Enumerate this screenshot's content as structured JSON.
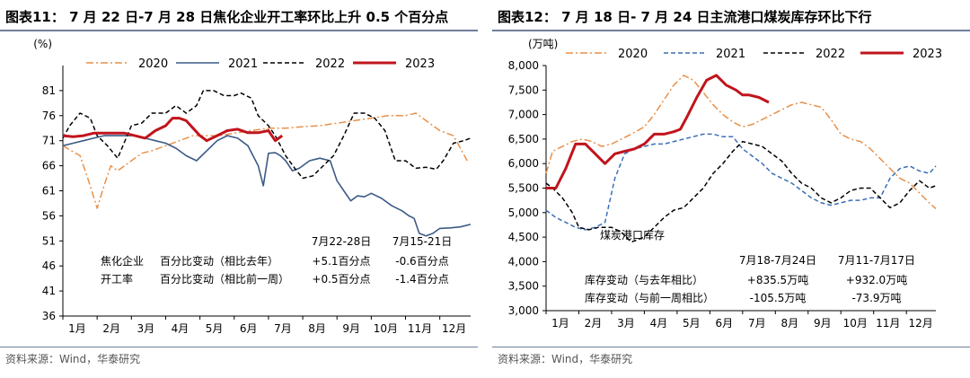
{
  "charts": [
    {
      "title": "图表11：  7 月 22 日-7 月 28 日焦化企业开工率环比上升 0.5 个百分点",
      "source": "资料来源：Wind，华泰研究",
      "colors": {
        "rule": "#6f7f9a"
      },
      "chart_data": {
        "type": "line",
        "yunit": "(%)",
        "ylim": [
          36,
          86
        ],
        "yticks": [
          36,
          41,
          46,
          51,
          56,
          61,
          66,
          71,
          76,
          81
        ],
        "months": [
          "1月",
          "2月",
          "3月",
          "4月",
          "5月",
          "6月",
          "7月",
          "8月",
          "9月",
          "10月",
          "11月",
          "12月"
        ],
        "xlim": [
          1,
          12.9
        ],
        "series": [
          {
            "name": "2020",
            "color": "#e8914a",
            "dash": "8,3,2,3",
            "width": 1.5,
            "x": [
              1,
              1.25,
              1.5,
              1.75,
              2,
              2.2,
              2.4,
              2.6,
              2.8,
              3,
              3.3,
              3.6,
              4,
              4.4,
              4.8,
              5.2,
              5.6,
              6,
              6.5,
              7,
              7.5,
              8,
              8.5,
              9,
              9.5,
              10,
              10.5,
              11,
              11.3,
              11.6,
              12,
              12.4,
              12.8
            ],
            "y": [
              70,
              69,
              68,
              63,
              57.5,
              62,
              66,
              65,
              66,
              67,
              68.5,
              69,
              70,
              71,
              72,
              72,
              72,
              72.5,
              73,
              73.5,
              73.5,
              73.8,
              74,
              74.5,
              75,
              75.5,
              76,
              76,
              76.5,
              75,
              73,
              72,
              67
            ]
          },
          {
            "name": "2021",
            "color": "#3b5a86",
            "dash": "",
            "width": 1.6,
            "x": [
              1,
              1.3,
              1.6,
              1.9,
              2.2,
              2.5,
              2.8,
              3.1,
              3.4,
              3.7,
              4,
              4.3,
              4.6,
              4.9,
              5.2,
              5.5,
              5.8,
              6.1,
              6.4,
              6.7,
              6.85,
              7,
              7.2,
              7.35,
              7.5,
              7.7,
              7.9,
              8.2,
              8.5,
              8.8,
              9,
              9.2,
              9.4,
              9.6,
              9.8,
              10,
              10.3,
              10.6,
              10.9,
              11.1,
              11.25,
              11.4,
              11.6,
              11.8,
              12,
              12.3,
              12.6,
              12.9
            ],
            "y": [
              70,
              70.5,
              71,
              71.5,
              72,
              72,
              72,
              72,
              71.5,
              71,
              70.5,
              69.5,
              68,
              67,
              69,
              71,
              72,
              71.5,
              70,
              66,
              62,
              68.5,
              68.6,
              68,
              67,
              65,
              65.5,
              67,
              67.5,
              67,
              63,
              61,
              59,
              60,
              59.8,
              60.5,
              59.5,
              58,
              57,
              56,
              55.5,
              52.5,
              52,
              52.5,
              53.5,
              53.6,
              53.8,
              54.3
            ]
          },
          {
            "name": "2022",
            "color": "#000000",
            "dash": "5,3",
            "width": 1.5,
            "x": [
              1,
              1.2,
              1.5,
              1.8,
              2,
              2.3,
              2.6,
              3,
              3.3,
              3.6,
              4,
              4.3,
              4.6,
              4.9,
              5.1,
              5.4,
              5.7,
              6,
              6.2,
              6.5,
              6.7,
              7,
              7.2,
              7.5,
              7.8,
              8,
              8.3,
              8.6,
              8.9,
              9.2,
              9.5,
              9.8,
              10.1,
              10.4,
              10.7,
              11,
              11.3,
              11.6,
              11.9,
              12.1,
              12.4,
              12.7,
              12.9
            ],
            "y": [
              71.5,
              74,
              76.5,
              75.5,
              72,
              70,
              67.5,
              74,
              74.5,
              76.5,
              76.5,
              78,
              76.5,
              78,
              81,
              81,
              80,
              80,
              80.5,
              79.5,
              76,
              74,
              72,
              68,
              65.2,
              63.5,
              64,
              66,
              68,
              72,
              76.5,
              76.5,
              75.5,
              73,
              67,
              67,
              65.5,
              65.7,
              65.3,
              67,
              70.5,
              71,
              71.5
            ]
          },
          {
            "name": "2023",
            "color": "#c0141d",
            "dash": "",
            "width": 3,
            "x": [
              1,
              1.3,
              1.6,
              1.9,
              2.2,
              2.5,
              2.8,
              3.1,
              3.4,
              3.7,
              4,
              4.2,
              4.4,
              4.6,
              4.8,
              5,
              5.2,
              5.5,
              5.8,
              6.1,
              6.4,
              6.7,
              7,
              7.2,
              7.4
            ],
            "y": [
              72,
              71.8,
              72,
              72.5,
              72.5,
              72.5,
              72.5,
              72,
              71.5,
              73,
              74,
              75.5,
              75.5,
              75,
              73.5,
              72,
              71,
              72,
              73,
              73.3,
              72.6,
              72.6,
              73,
              71,
              72
            ]
          }
        ],
        "legend": [
          "2020",
          "2021",
          "2022",
          "2023"
        ],
        "annotations": {
          "col_headers": [
            "7月22-28日",
            "7月15-21日"
          ],
          "rows": [
            {
              "label": "焦化企业",
              "desc": "百分比变动（相比去年）",
              "v1": "+5.1百分点",
              "v2": "-0.6百分点"
            },
            {
              "label": "开工率",
              "desc": "百分比变动（相比前一周）",
              "v1": "+0.5百分点",
              "v2": "-1.4百分点"
            }
          ]
        }
      }
    },
    {
      "title": "图表12：  7 月 18 日- 7 月 24 日主流港口煤炭库存环比下行",
      "source": "资料来源：Wind，华泰研究",
      "colors": {
        "rule": "#6f7f9a"
      },
      "chart_data": {
        "type": "line",
        "yunit": "(万吨)",
        "ylim": [
          3000,
          8000
        ],
        "yticks": [
          3000,
          3500,
          4000,
          4500,
          5000,
          5500,
          6000,
          6500,
          7000,
          7500,
          8000
        ],
        "months": [
          "1月",
          "2月",
          "3月",
          "4月",
          "5月",
          "6月",
          "7月",
          "8月",
          "9月",
          "10月",
          "11月",
          "12月"
        ],
        "xlim": [
          1,
          12.9
        ],
        "series": [
          {
            "name": "2020",
            "color": "#e8914a",
            "dash": "8,3,2,3",
            "width": 1.5,
            "x": [
              1,
              1.2,
              1.5,
              1.8,
              2.1,
              2.4,
              2.7,
              3,
              3.3,
              3.6,
              4,
              4.3,
              4.6,
              4.9,
              5.2,
              5.5,
              5.8,
              6.1,
              6.4,
              6.7,
              7,
              7.3,
              7.6,
              7.9,
              8.2,
              8.5,
              8.8,
              9.1,
              9.4,
              9.7,
              10,
              10.3,
              10.6,
              10.9,
              11.2,
              11.5,
              11.8,
              12.1,
              12.4,
              12.7,
              12.9
            ],
            "y": [
              5800,
              6250,
              6350,
              6450,
              6500,
              6450,
              6350,
              6400,
              6500,
              6600,
              6750,
              7000,
              7300,
              7600,
              7800,
              7700,
              7450,
              7200,
              7000,
              6850,
              6750,
              6800,
              6900,
              7000,
              7100,
              7200,
              7250,
              7200,
              7150,
              6900,
              6600,
              6500,
              6450,
              6300,
              6100,
              5900,
              5700,
              5600,
              5400,
              5200,
              5080
            ]
          },
          {
            "name": "2021",
            "color": "#3b6fb6",
            "dash": "5,3",
            "width": 1.5,
            "x": [
              1,
              1.3,
              1.6,
              1.9,
              2.2,
              2.5,
              2.8,
              3.1,
              3.4,
              3.7,
              4,
              4.3,
              4.6,
              4.9,
              5.2,
              5.5,
              5.8,
              6.1,
              6.4,
              6.7,
              7,
              7.3,
              7.6,
              7.9,
              8.2,
              8.5,
              8.8,
              9.1,
              9.4,
              9.7,
              10,
              10.3,
              10.6,
              10.9,
              11.2,
              11.5,
              11.8,
              12.1,
              12.4,
              12.7,
              12.9
            ],
            "y": [
              5050,
              4900,
              4800,
              4700,
              4650,
              4700,
              4800,
              5700,
              6200,
              6300,
              6350,
              6400,
              6400,
              6450,
              6500,
              6550,
              6600,
              6600,
              6550,
              6550,
              6300,
              6150,
              6000,
              5800,
              5700,
              5600,
              5450,
              5300,
              5200,
              5150,
              5200,
              5250,
              5250,
              5300,
              5300,
              5700,
              5900,
              5950,
              5850,
              5800,
              5950
            ]
          },
          {
            "name": "2022",
            "color": "#000000",
            "dash": "5,3",
            "width": 1.5,
            "x": [
              1,
              1.2,
              1.5,
              1.8,
              2,
              2.3,
              2.6,
              3,
              3.3,
              3.6,
              4,
              4.3,
              4.6,
              4.9,
              5.2,
              5.5,
              5.8,
              6.1,
              6.4,
              6.7,
              7,
              7.3,
              7.6,
              7.9,
              8.2,
              8.5,
              8.8,
              9.1,
              9.4,
              9.7,
              10,
              10.3,
              10.6,
              10.9,
              11.2,
              11.5,
              11.8,
              12.1,
              12.4,
              12.7,
              12.9
            ],
            "y": [
              5600,
              5500,
              5300,
              5000,
              4700,
              4650,
              4700,
              4700,
              4600,
              4400,
              4500,
              4700,
              4900,
              5050,
              5100,
              5300,
              5500,
              5800,
              6000,
              6250,
              6450,
              6400,
              6350,
              6200,
              6050,
              5800,
              5600,
              5500,
              5300,
              5200,
              5300,
              5450,
              5500,
              5500,
              5300,
              5100,
              5200,
              5450,
              5650,
              5500,
              5550
            ]
          },
          {
            "name": "2023",
            "color": "#c0141d",
            "dash": "",
            "width": 3,
            "x": [
              1,
              1.3,
              1.6,
              1.9,
              2.2,
              2.5,
              2.8,
              3.1,
              3.4,
              3.7,
              4,
              4.3,
              4.6,
              4.9,
              5.1,
              5.3,
              5.6,
              5.9,
              6.2,
              6.5,
              6.8,
              7,
              7.2,
              7.5,
              7.8
            ],
            "y": [
              5500,
              5500,
              5900,
              6400,
              6400,
              6200,
              6000,
              6200,
              6250,
              6300,
              6400,
              6600,
              6600,
              6650,
              6700,
              6950,
              7350,
              7700,
              7800,
              7600,
              7500,
              7400,
              7400,
              7350,
              7250
            ]
          }
        ],
        "legend": [
          "2020",
          "2021",
          "2022",
          "2023"
        ],
        "annotations": {
          "heading": "煤炭港口库存",
          "col_headers": [
            "7月18-7月24日",
            "7月11-7月17日"
          ],
          "rows": [
            {
              "desc": "库存变动（与去年相比）",
              "v1": "+835.5万吨",
              "v2": "+932.0万吨"
            },
            {
              "desc": "库存变动（与前一周相比）",
              "v1": "-105.5万吨",
              "v2": "-73.9万吨"
            }
          ]
        }
      }
    }
  ]
}
